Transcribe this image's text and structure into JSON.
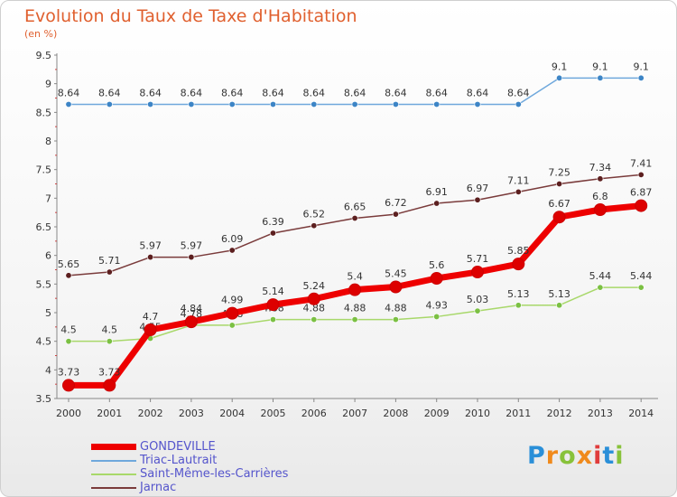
{
  "header": {
    "title": "Evolution du Taux de Taxe d'Habitation",
    "subtitle": "(en %)"
  },
  "logo": {
    "text": "Proxiti",
    "letters": [
      "P",
      "r",
      "o",
      "x",
      "i",
      "t",
      "i"
    ],
    "colors": [
      "#2a8fd8",
      "#f08a1c",
      "#88c23a",
      "#f08a1c",
      "#e03c3c",
      "#2a8fd8",
      "#88c23a"
    ]
  },
  "chart_data": {
    "type": "line",
    "x": [
      "2000",
      "2001",
      "2002",
      "2003",
      "2004",
      "2005",
      "2006",
      "2007",
      "2008",
      "2009",
      "2010",
      "2011",
      "2012",
      "2013",
      "2014"
    ],
    "ylim": [
      3.5,
      9.5
    ],
    "yticks": [
      "3.5",
      "4",
      "4.5",
      "5",
      "5.5",
      "6",
      "6.5",
      "7",
      "7.5",
      "8",
      "8.5",
      "9",
      "9.5"
    ],
    "grid": false,
    "legend_position": "bottom-left",
    "series": [
      {
        "name": "GONDEVILLE",
        "color": "#ee0000",
        "marker_color": "#dd0000",
        "width": 7,
        "values": [
          3.73,
          3.73,
          4.7,
          4.84,
          4.99,
          5.14,
          5.24,
          5.4,
          5.45,
          5.6,
          5.71,
          5.85,
          6.67,
          6.8,
          6.87
        ],
        "labels": [
          "3.73",
          "3.73",
          "4.7",
          "4.84",
          "4.99",
          "5.14",
          "5.24",
          "5.4",
          "5.45",
          "5.6",
          "5.71",
          "5.85",
          "6.67",
          "6.8",
          "6.87"
        ]
      },
      {
        "name": "Triac-Lautrait",
        "color": "#6fa8dc",
        "marker_color": "#3d85c6",
        "width": 1.5,
        "values": [
          8.64,
          8.64,
          8.64,
          8.64,
          8.64,
          8.64,
          8.64,
          8.64,
          8.64,
          8.64,
          8.64,
          8.64,
          9.1,
          9.1,
          9.1
        ],
        "labels": [
          "8.64",
          "8.64",
          "8.64",
          "8.64",
          "8.64",
          "8.64",
          "8.64",
          "8.64",
          "8.64",
          "8.64",
          "8.64",
          "8.64",
          "9.1",
          "9.1",
          "9.1"
        ]
      },
      {
        "name": "Saint-Même-les-Carrières",
        "color": "#a8d86a",
        "marker_color": "#7bc043",
        "width": 1.5,
        "values": [
          4.5,
          4.5,
          4.55,
          4.78,
          4.78,
          4.88,
          4.88,
          4.88,
          4.88,
          4.93,
          5.03,
          5.13,
          5.13,
          5.44,
          5.44
        ],
        "labels": [
          "4.5",
          "4.5",
          "4.55",
          "4.78",
          "4.78",
          "4.88",
          "4.88",
          "4.88",
          "4.88",
          "4.93",
          "5.03",
          "5.13",
          "5.13",
          "5.44",
          "5.44"
        ]
      },
      {
        "name": "Jarnac",
        "color": "#7a3b3b",
        "marker_color": "#5c1f1f",
        "width": 1.5,
        "values": [
          5.65,
          5.71,
          5.97,
          5.97,
          6.09,
          6.39,
          6.52,
          6.65,
          6.72,
          6.91,
          6.97,
          7.11,
          7.25,
          7.34,
          7.41
        ],
        "labels": [
          "5.65",
          "5.71",
          "5.97",
          "5.97",
          "6.09",
          "6.39",
          "6.52",
          "6.65",
          "6.72",
          "6.91",
          "6.97",
          "7.11",
          "7.25",
          "7.34",
          "7.41"
        ]
      }
    ]
  }
}
